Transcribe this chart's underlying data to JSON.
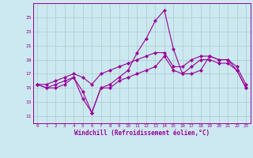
{
  "xlabel": "Windchill (Refroidissement éolien,°C)",
  "x": [
    0,
    1,
    2,
    3,
    4,
    5,
    6,
    7,
    8,
    9,
    10,
    11,
    12,
    13,
    14,
    15,
    16,
    17,
    18,
    19,
    20,
    21,
    22,
    23
  ],
  "line1": [
    15.5,
    15.0,
    15.0,
    15.5,
    16.5,
    14.5,
    11.5,
    15.0,
    15.5,
    16.5,
    17.5,
    20.0,
    22.0,
    24.5,
    26.0,
    20.5,
    17.0,
    17.0,
    17.5,
    19.5,
    19.0,
    19.0,
    17.5,
    15.0
  ],
  "line2": [
    15.5,
    15.0,
    15.5,
    16.0,
    16.5,
    13.5,
    11.5,
    15.0,
    15.0,
    16.0,
    16.5,
    17.0,
    17.5,
    18.0,
    19.5,
    17.5,
    17.0,
    18.0,
    19.0,
    19.0,
    18.5,
    18.5,
    17.5,
    15.0
  ],
  "line3": [
    15.5,
    15.5,
    16.0,
    16.5,
    17.0,
    16.5,
    15.5,
    17.0,
    17.5,
    18.0,
    18.5,
    19.0,
    19.5,
    20.0,
    20.0,
    18.0,
    18.0,
    19.0,
    19.5,
    19.5,
    19.0,
    19.0,
    18.0,
    15.5
  ],
  "line_color": "#990099",
  "bg_color": "#cce8f0",
  "grid_color": "#aacccc",
  "ylim": [
    10,
    27
  ],
  "yticks": [
    11,
    13,
    15,
    17,
    19,
    21,
    23,
    25
  ],
  "xticks": [
    0,
    1,
    2,
    3,
    4,
    5,
    6,
    7,
    8,
    9,
    10,
    11,
    12,
    13,
    14,
    15,
    16,
    17,
    18,
    19,
    20,
    21,
    22,
    23
  ],
  "xlim": [
    -0.5,
    23.5
  ]
}
